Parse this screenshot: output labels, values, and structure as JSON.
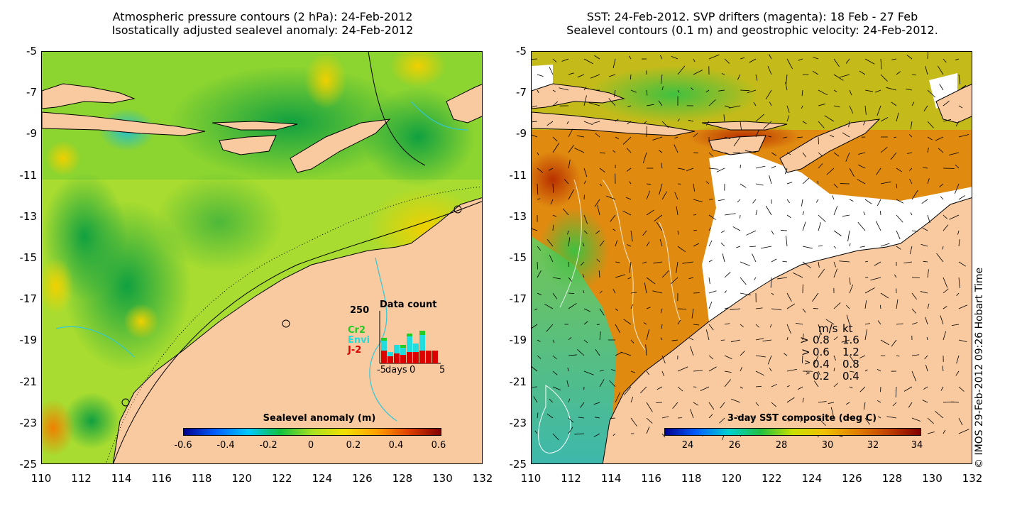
{
  "left_panel": {
    "title_line1": "Atmospheric pressure contours (2 hPa): 24-Feb-2012",
    "title_line2": "Isostatically adjusted sealevel anomaly: 24-Feb-2012",
    "colorbar_label": "Sealevel anomaly (m)",
    "colorbar_ticks": [
      "-0.6",
      "-0.4",
      "-0.2",
      "0",
      "0.2",
      "0.4",
      "0.6"
    ],
    "inset": {
      "title": "Data count",
      "max_label": "250",
      "series": [
        {
          "name": "Cr2",
          "color": "#22cc22"
        },
        {
          "name": "Envi",
          "color": "#22dddd"
        },
        {
          "name": "J-2",
          "color": "#dd0000"
        }
      ],
      "xlabel": "days",
      "xticks": [
        "-5",
        "0",
        "5"
      ]
    }
  },
  "right_panel": {
    "title_line1": "SST: 24-Feb-2012. SVP drifters (magenta): 18 Feb - 27 Feb",
    "title_line2": "Sealevel contours (0.1 m) and geostrophic velocity: 24-Feb-2012.",
    "colorbar_label": "3-day SST composite (deg C)",
    "colorbar_ticks": [
      "24",
      "26",
      "28",
      "30",
      "32",
      "34"
    ],
    "velocity_legend": {
      "header": [
        "m/s",
        "kt"
      ],
      "rows": [
        [
          "0.8",
          "1.6"
        ],
        [
          "0.6",
          "1.2"
        ],
        [
          "0.4",
          "0.8"
        ],
        [
          "0.2",
          "0.4"
        ]
      ]
    }
  },
  "axes": {
    "yticks": [
      "-5",
      "-7",
      "-9",
      "-11",
      "-13",
      "-15",
      "-17",
      "-19",
      "-21",
      "-23",
      "-25"
    ],
    "xticks": [
      "110",
      "112",
      "114",
      "116",
      "118",
      "120",
      "122",
      "124",
      "126",
      "128",
      "130",
      "132"
    ]
  },
  "copyright": "© IMOS 29-Feb-2012 09:26 Hobart Time",
  "colors": {
    "land": "#f9c9a0",
    "sla_scale": [
      "#000090",
      "#0060ff",
      "#00c8ff",
      "#10c040",
      "#a8e020",
      "#f0e000",
      "#ffa000",
      "#e04000",
      "#800000"
    ],
    "sst_scale": [
      "#000090",
      "#0060ff",
      "#00d0d0",
      "#20c040",
      "#c8e000",
      "#f0c000",
      "#e08000",
      "#c04000",
      "#800000"
    ]
  }
}
